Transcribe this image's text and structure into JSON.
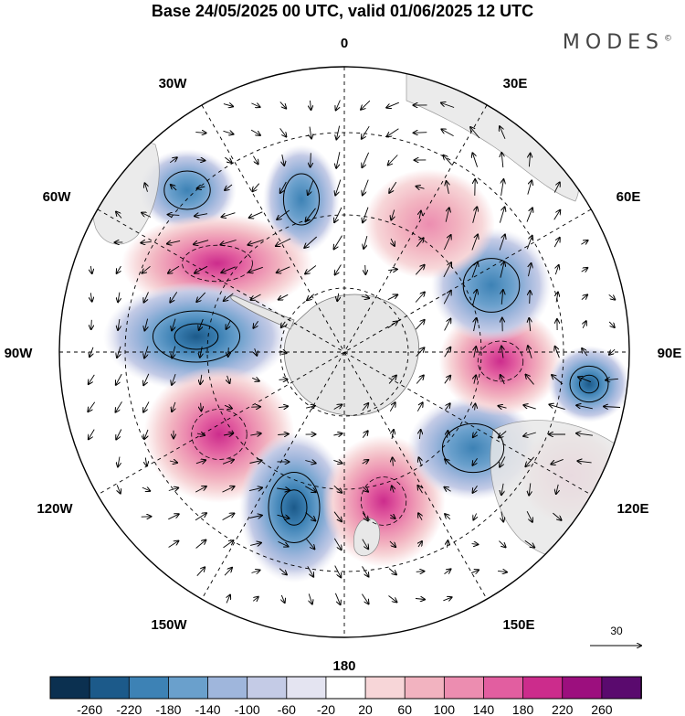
{
  "title": "Base 24/05/2025 00 UTC, valid 01/06/2025 12 UTC",
  "brand": "MODES",
  "brand_mark": "©",
  "longitude_labels": {
    "top": "0",
    "top_right": "30E",
    "right_upper": "60E",
    "right": "90E",
    "right_lower": "120E",
    "bottom_right": "150E",
    "bottom": "180",
    "bottom_left": "150W",
    "left_lower": "120W",
    "left": "90W",
    "left_upper": "60W",
    "top_left": "30W"
  },
  "reference_vector": {
    "label": "30"
  },
  "colorbar": {
    "tick_labels": [
      "-260",
      "-220",
      "-180",
      "-140",
      "-100",
      "-60",
      "-20",
      "20",
      "60",
      "100",
      "140",
      "180",
      "220",
      "260"
    ],
    "colors": [
      "#0b3050",
      "#1c5a8a",
      "#3d82b5",
      "#6aa0cc",
      "#9fb6dc",
      "#c4cbe6",
      "#e4e4f1",
      "#ffffff",
      "#f7d6d8",
      "#f2b3c0",
      "#ec8db0",
      "#e25ea0",
      "#cc2c8c",
      "#9c0f7e",
      "#5a0a6e"
    ]
  },
  "anomaly_centers": [
    {
      "sign": "negative",
      "strength": 2
    },
    {
      "sign": "negative",
      "strength": 2
    },
    {
      "sign": "positive",
      "strength": 3
    },
    {
      "sign": "negative",
      "strength": 3
    },
    {
      "sign": "positive",
      "strength": 3
    },
    {
      "sign": "negative",
      "strength": 3
    },
    {
      "sign": "positive",
      "strength": 3
    },
    {
      "sign": "negative",
      "strength": 2
    },
    {
      "sign": "positive",
      "strength": 3
    },
    {
      "sign": "negative",
      "strength": 2
    },
    {
      "sign": "positive",
      "strength": 1
    },
    {
      "sign": "negative",
      "strength": 3
    },
    {
      "sign": "positive",
      "strength": 1
    }
  ]
}
